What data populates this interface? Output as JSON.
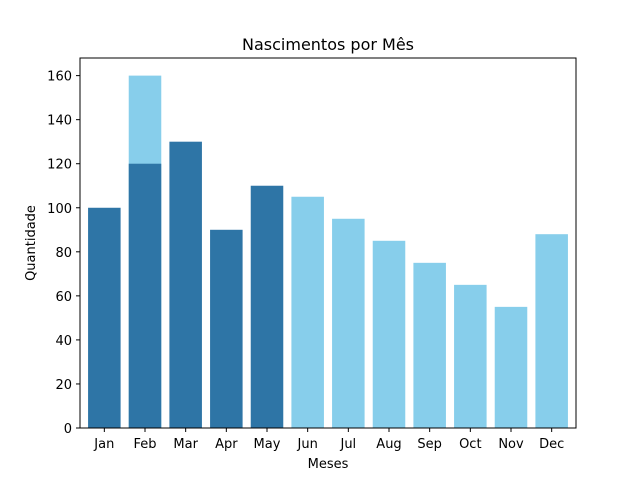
{
  "chart_data": {
    "type": "bar",
    "title": "Nascimentos por Mês",
    "xlabel": "Meses",
    "ylabel": "Quantidade",
    "categories": [
      "Jan",
      "Feb",
      "Mar",
      "Apr",
      "May",
      "Jun",
      "Jul",
      "Aug",
      "Sep",
      "Oct",
      "Nov",
      "Dec"
    ],
    "series": [
      {
        "values": [
          null,
          160,
          null,
          null,
          null,
          105,
          95,
          85,
          75,
          65,
          55,
          88
        ],
        "color": "#87ceeb"
      },
      {
        "values": [
          100,
          120,
          130,
          90,
          110,
          null,
          null,
          null,
          null,
          null,
          null,
          null
        ],
        "color": "#2e75a6"
      }
    ],
    "ylim": [
      0,
      168
    ],
    "yticks": [
      0,
      20,
      40,
      60,
      80,
      100,
      120,
      140,
      160
    ],
    "grid": false,
    "legend": "none"
  }
}
